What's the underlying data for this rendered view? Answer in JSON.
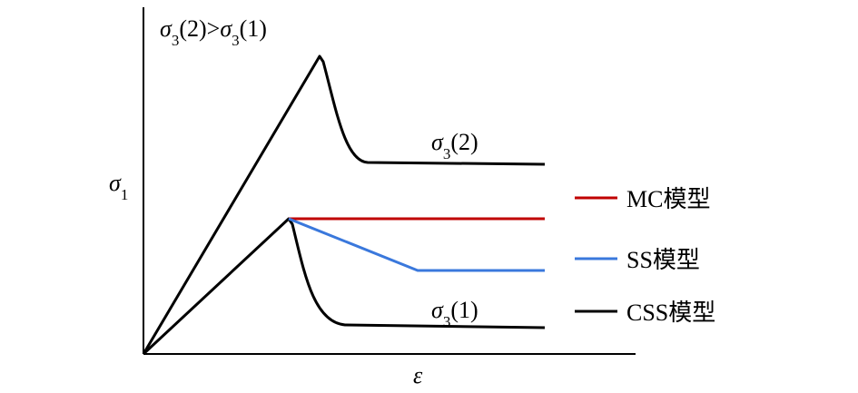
{
  "labels": {
    "condition": [
      "σ",
      "3",
      "(2)>",
      "σ",
      "3",
      "(1)"
    ],
    "upper_curve": [
      "σ",
      "3",
      "(2)"
    ],
    "lower_curve": [
      "σ",
      "3",
      "(1)"
    ],
    "y_axis": [
      "σ",
      "1"
    ],
    "x_axis": "ε"
  },
  "legend": [
    {
      "label": "MC模型",
      "color": "#c00000"
    },
    {
      "label": "SS模型",
      "color": "#3a78dc"
    },
    {
      "label": "CSS模型",
      "color": "#000000"
    }
  ]
}
